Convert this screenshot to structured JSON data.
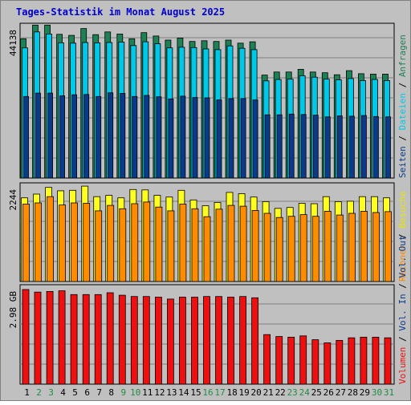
{
  "title": "Tages-Statistik im Monat August 2025",
  "colors": {
    "frame_bg": "#c0c0c0",
    "plot_bg": "#c0c0c0",
    "title": "#0000cc",
    "anfragen": "#1e8055",
    "dateien": "#00c8e8",
    "seiten": "#0a3a8a",
    "besuche": "#ffff20",
    "rechner": "#ff8c00",
    "volumen": "#ee1010",
    "weekend_day": "#228b44",
    "weekday": "#000000"
  },
  "chart_data": [
    {
      "type": "bar",
      "panel": "requests",
      "ymax_label": "44138",
      "ylim": [
        0,
        44138
      ],
      "categories": [
        "1",
        "2",
        "3",
        "4",
        "5",
        "6",
        "7",
        "8",
        "9",
        "10",
        "11",
        "12",
        "13",
        "14",
        "15",
        "16",
        "17",
        "18",
        "19",
        "20",
        "21",
        "22",
        "23",
        "24",
        "25",
        "26",
        "27",
        "28",
        "29",
        "30",
        "31"
      ],
      "series": [
        {
          "name": "Anfragen",
          "values": [
            41000,
            45000,
            45000,
            42300,
            42000,
            44000,
            42200,
            43000,
            42400,
            41000,
            42800,
            41800,
            40600,
            41200,
            40200,
            40400,
            40200,
            40600,
            39700,
            40100,
            30300,
            31200,
            31200,
            32000,
            31200,
            31000,
            30400,
            31600,
            30700,
            30600,
            30600
          ]
        },
        {
          "name": "Dateien",
          "values": [
            38300,
            43000,
            42400,
            39800,
            39700,
            39900,
            39800,
            39900,
            40000,
            39000,
            40100,
            39500,
            38300,
            38500,
            38400,
            38000,
            37800,
            38900,
            38200,
            37800,
            28600,
            29000,
            29100,
            30100,
            29700,
            29100,
            28900,
            29300,
            28700,
            29000,
            28700
          ]
        },
        {
          "name": "Seiten",
          "values": [
            24000,
            25000,
            25000,
            24200,
            24500,
            24600,
            24000,
            25100,
            24900,
            24000,
            24300,
            23900,
            23300,
            24100,
            23700,
            23600,
            23000,
            23400,
            23400,
            23000,
            18600,
            18600,
            18800,
            18700,
            18500,
            18000,
            18300,
            18200,
            18400,
            18100,
            18000
          ]
        }
      ]
    },
    {
      "type": "bar",
      "panel": "visits",
      "ymax_label": "2244",
      "ylim": [
        0,
        2244
      ],
      "categories": [
        "1",
        "2",
        "3",
        "4",
        "5",
        "6",
        "7",
        "8",
        "9",
        "10",
        "11",
        "12",
        "13",
        "14",
        "15",
        "16",
        "17",
        "18",
        "19",
        "20",
        "21",
        "22",
        "23",
        "24",
        "25",
        "26",
        "27",
        "28",
        "29",
        "30",
        "31"
      ],
      "series": [
        {
          "name": "Besuche",
          "values": [
            2000,
            2090,
            2250,
            2170,
            2180,
            2280,
            2030,
            2060,
            2000,
            2200,
            2190,
            2060,
            2020,
            2180,
            1950,
            1810,
            1890,
            2130,
            2100,
            2020,
            1910,
            1750,
            1770,
            1870,
            1860,
            2030,
            1910,
            1920,
            2030,
            2030,
            2000
          ]
        },
        {
          "name": "Rechner",
          "values": [
            1850,
            1880,
            2030,
            1830,
            1880,
            1870,
            1690,
            1820,
            1740,
            1860,
            1900,
            1780,
            1690,
            1850,
            1740,
            1550,
            1730,
            1820,
            1800,
            1700,
            1630,
            1530,
            1560,
            1600,
            1560,
            1680,
            1590,
            1630,
            1680,
            1650,
            1670
          ]
        }
      ]
    },
    {
      "type": "bar",
      "panel": "volume",
      "ymax_label": "2.98 GB",
      "ylim": [
        0,
        2.98
      ],
      "categories": [
        "1",
        "2",
        "3",
        "4",
        "5",
        "6",
        "7",
        "8",
        "9",
        "10",
        "11",
        "12",
        "13",
        "14",
        "15",
        "16",
        "17",
        "18",
        "19",
        "20",
        "21",
        "22",
        "23",
        "24",
        "25",
        "26",
        "27",
        "28",
        "29",
        "30",
        "31"
      ],
      "series": [
        {
          "name": "Volumen",
          "values": [
            2.98,
            2.9,
            2.92,
            2.94,
            2.82,
            2.82,
            2.82,
            2.88,
            2.8,
            2.76,
            2.76,
            2.74,
            2.68,
            2.74,
            2.74,
            2.76,
            2.76,
            2.74,
            2.76,
            2.72,
            1.56,
            1.5,
            1.48,
            1.52,
            1.4,
            1.3,
            1.38,
            1.46,
            1.48,
            1.48,
            1.46
          ]
        }
      ]
    }
  ],
  "right_legends": [
    {
      "label": "Anfragen",
      "color": "#1e8055"
    },
    {
      "label": "Dateien",
      "color": "#00c8e8"
    },
    {
      "label": "Seiten",
      "color": "#0a3a8a"
    },
    {
      "label": "Besuche",
      "color": "#e6e600"
    },
    {
      "label": "Rechner",
      "color": "#ff8c00"
    },
    {
      "label": "Vol. Out",
      "color": "#0a3a8a"
    },
    {
      "label": "Vol. In",
      "color": "#0a3a8a"
    },
    {
      "label": "Volumen",
      "color": "#ee1010"
    }
  ],
  "legend_separator": "/",
  "weekend_days": [
    "2",
    "3",
    "9",
    "10",
    "16",
    "17",
    "23",
    "24",
    "30",
    "31"
  ]
}
